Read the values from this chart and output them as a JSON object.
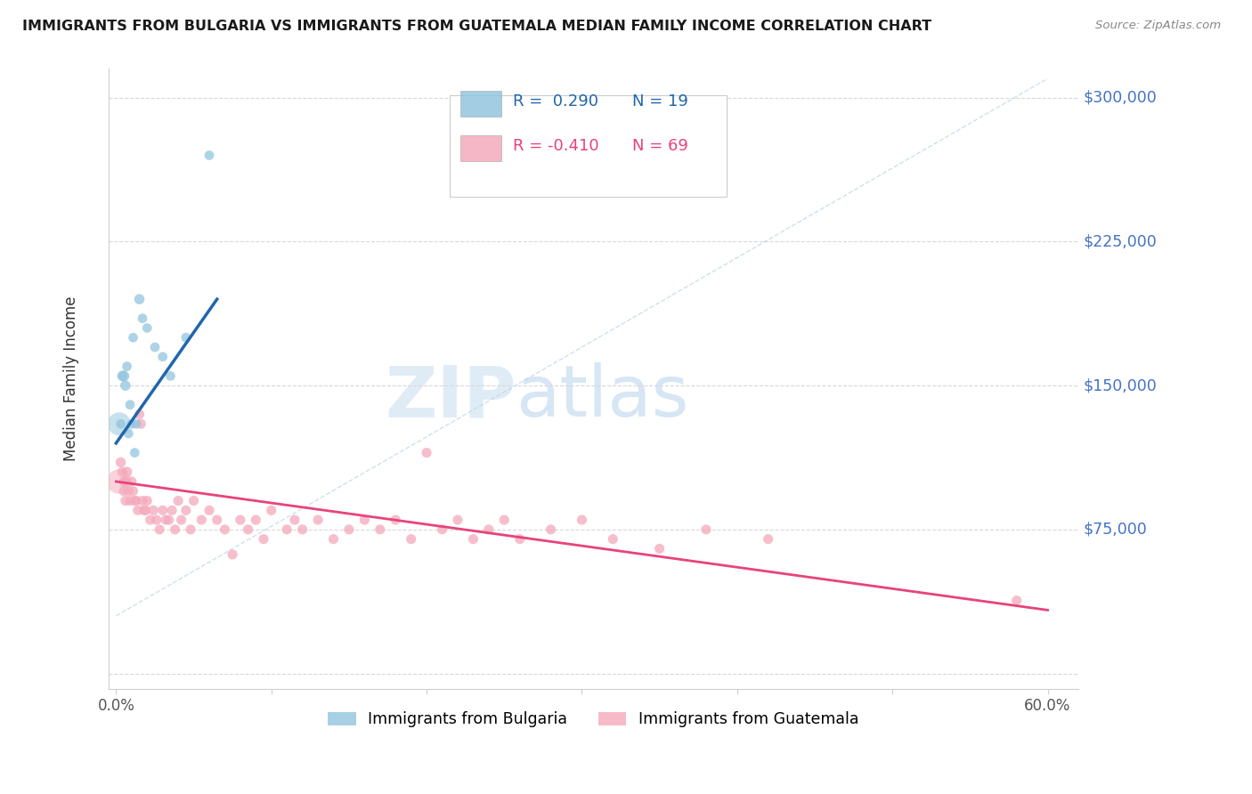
{
  "title": "IMMIGRANTS FROM BULGARIA VS IMMIGRANTS FROM GUATEMALA MEDIAN FAMILY INCOME CORRELATION CHART",
  "source": "Source: ZipAtlas.com",
  "ylabel": "Median Family Income",
  "yticks": [
    0,
    75000,
    150000,
    225000,
    300000
  ],
  "ytick_labels": [
    "",
    "$75,000",
    "$150,000",
    "$225,000",
    "$300,000"
  ],
  "ymin": 0,
  "ymax": 315000,
  "xmin": 0.0,
  "xmax": 0.62,
  "color_bulgaria": "#92c5de",
  "color_guatemala": "#f4a9bb",
  "color_bulgaria_line": "#2166ac",
  "color_guatemala_line": "#e8437a",
  "color_dashed": "#b8d4e8",
  "watermark_zip": "ZIP",
  "watermark_atlas": "atlas",
  "bulgaria_x": [
    0.003,
    0.004,
    0.005,
    0.006,
    0.007,
    0.008,
    0.009,
    0.01,
    0.011,
    0.012,
    0.013,
    0.015,
    0.017,
    0.02,
    0.025,
    0.03,
    0.035,
    0.045,
    0.06
  ],
  "bulgaria_y": [
    130000,
    155000,
    155000,
    150000,
    160000,
    125000,
    140000,
    130000,
    175000,
    115000,
    130000,
    195000,
    185000,
    180000,
    170000,
    165000,
    155000,
    175000,
    270000
  ],
  "bulgaria_sizes": [
    60,
    70,
    80,
    70,
    60,
    60,
    60,
    60,
    60,
    60,
    60,
    70,
    60,
    60,
    60,
    60,
    60,
    60,
    60
  ],
  "bulgaria_big_x": [
    0.002
  ],
  "bulgaria_big_y": [
    130000
  ],
  "bulgaria_big_sizes": [
    350
  ],
  "guatemala_x": [
    0.003,
    0.004,
    0.005,
    0.005,
    0.006,
    0.006,
    0.007,
    0.008,
    0.009,
    0.01,
    0.011,
    0.012,
    0.013,
    0.014,
    0.015,
    0.016,
    0.017,
    0.018,
    0.019,
    0.02,
    0.022,
    0.024,
    0.026,
    0.028,
    0.03,
    0.032,
    0.034,
    0.036,
    0.038,
    0.04,
    0.042,
    0.045,
    0.048,
    0.05,
    0.055,
    0.06,
    0.065,
    0.07,
    0.075,
    0.08,
    0.085,
    0.09,
    0.095,
    0.1,
    0.11,
    0.115,
    0.12,
    0.13,
    0.14,
    0.15,
    0.16,
    0.17,
    0.18,
    0.19,
    0.2,
    0.21,
    0.22,
    0.23,
    0.24,
    0.25,
    0.26,
    0.28,
    0.3,
    0.32,
    0.35,
    0.38,
    0.42,
    0.58
  ],
  "guatemala_y": [
    110000,
    105000,
    100000,
    95000,
    100000,
    90000,
    105000,
    95000,
    90000,
    100000,
    95000,
    90000,
    90000,
    85000,
    135000,
    130000,
    90000,
    85000,
    85000,
    90000,
    80000,
    85000,
    80000,
    75000,
    85000,
    80000,
    80000,
    85000,
    75000,
    90000,
    80000,
    85000,
    75000,
    90000,
    80000,
    85000,
    80000,
    75000,
    62000,
    80000,
    75000,
    80000,
    70000,
    85000,
    75000,
    80000,
    75000,
    80000,
    70000,
    75000,
    80000,
    75000,
    80000,
    70000,
    115000,
    75000,
    80000,
    70000,
    75000,
    80000,
    70000,
    75000,
    80000,
    70000,
    65000,
    75000,
    70000,
    38000
  ],
  "guatemala_sizes": [
    70,
    65,
    65,
    65,
    70,
    65,
    70,
    65,
    65,
    65,
    65,
    65,
    65,
    65,
    65,
    65,
    65,
    65,
    65,
    65,
    65,
    65,
    65,
    65,
    65,
    65,
    65,
    65,
    65,
    65,
    65,
    65,
    65,
    65,
    65,
    65,
    65,
    65,
    65,
    65,
    65,
    65,
    65,
    65,
    65,
    65,
    65,
    65,
    65,
    65,
    65,
    65,
    65,
    65,
    65,
    65,
    65,
    65,
    65,
    65,
    65,
    65,
    65,
    65,
    65,
    65,
    65,
    65
  ],
  "guatemala_big_x": [
    0.002
  ],
  "guatemala_big_y": [
    100000
  ],
  "guatemala_big_sizes": [
    400
  ],
  "legend_items": [
    {
      "color": "#92c5de",
      "r_text": "R =  0.290",
      "n_text": "N = 19",
      "line_color": "#2166ac"
    },
    {
      "color": "#f4a9bb",
      "r_text": "R = -0.410",
      "n_text": "N = 69",
      "line_color": "#e8437a"
    }
  ],
  "bottom_legend": [
    {
      "color": "#92c5de",
      "label": "Immigrants from Bulgaria"
    },
    {
      "color": "#f4a9bb",
      "label": "Immigrants from Guatemala"
    }
  ]
}
